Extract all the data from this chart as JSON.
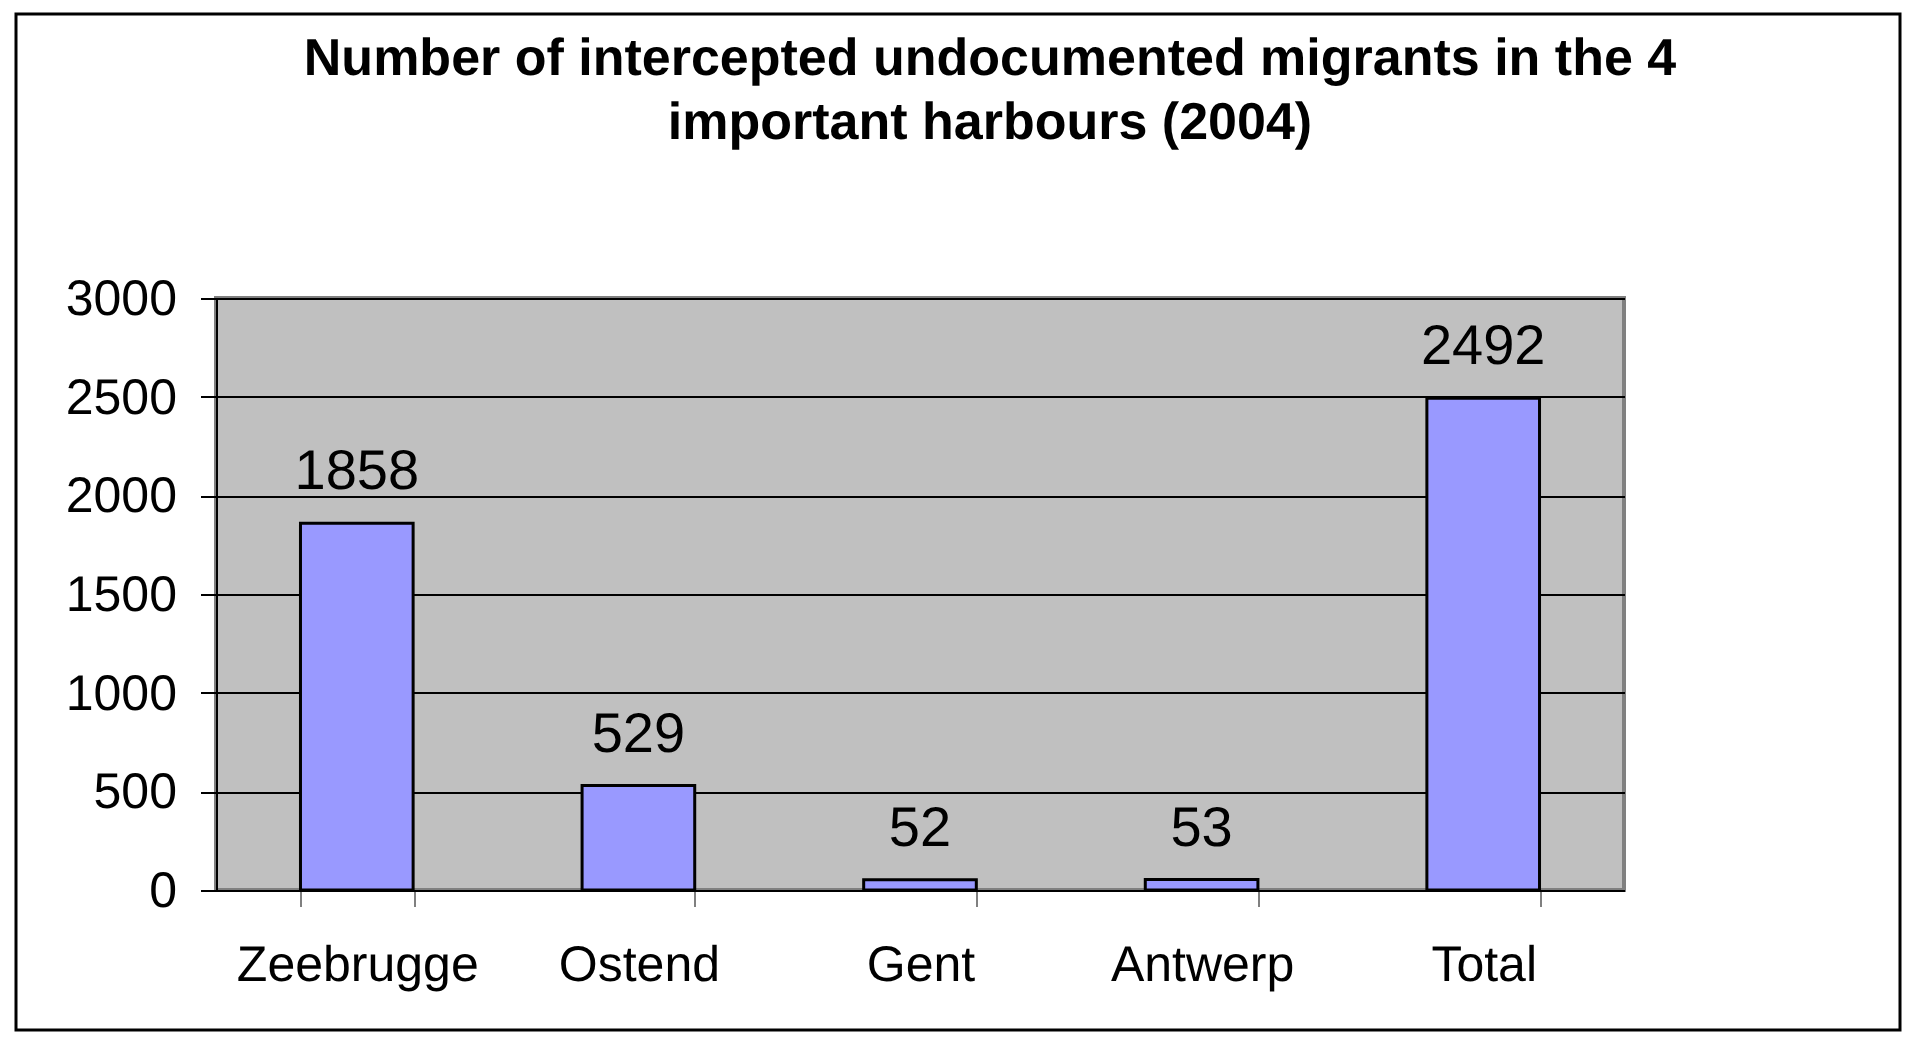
{
  "chart_data": {
    "type": "bar",
    "title": "Number of intercepted undocumented migrants in the 4 important harbours (2004)",
    "categories": [
      "Zeebrugge",
      "Ostend",
      "Gent",
      "Antwerp",
      "Total"
    ],
    "values": [
      1858,
      529,
      52,
      53,
      2492
    ],
    "color": "#9999ff",
    "ylim": [
      0,
      3000
    ],
    "yticks": [
      0,
      500,
      1000,
      1500,
      2000,
      2500,
      3000
    ],
    "grid": "y",
    "data_labels": true
  }
}
